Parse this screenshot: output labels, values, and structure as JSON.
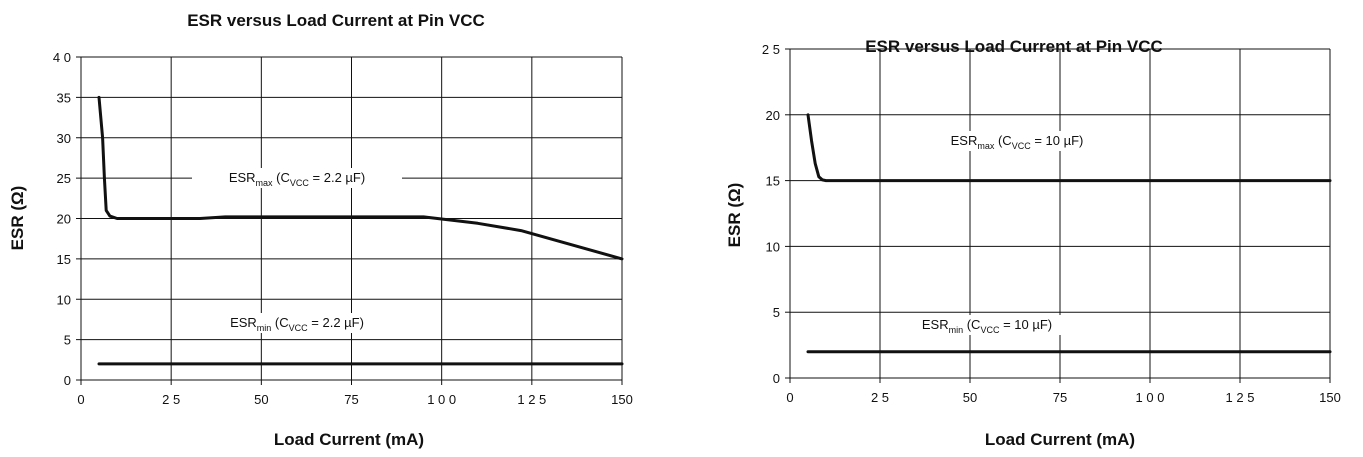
{
  "chart_data": [
    {
      "type": "line",
      "title": "ESR versus Load Current at Pin VCC",
      "xlabel": "Load Current (mA)",
      "ylabel": "ESR (Ω)",
      "xlim": [
        0,
        150
      ],
      "ylim": [
        0,
        40
      ],
      "x_ticks": [
        "0",
        "2 5",
        "50",
        "75",
        "1 0 0",
        "1 2 5",
        "150"
      ],
      "y_ticks": [
        "0",
        "5",
        "10",
        "15",
        "20",
        "25",
        "30",
        "35",
        "4 0"
      ],
      "grid": true,
      "series": [
        {
          "name_main": "ESR",
          "name_sub": "max",
          "name_rest": " (C",
          "name_sub2": "VCC",
          "name_end": " = 2.2 µF)",
          "x": [
            5,
            6,
            6.5,
            7,
            8,
            10,
            20,
            33,
            40,
            60,
            80,
            95,
            110,
            122,
            150
          ],
          "y": [
            35,
            30,
            25,
            21,
            20.3,
            20,
            20,
            20,
            20.2,
            20.2,
            20.2,
            20.2,
            19.4,
            18.5,
            15
          ]
        },
        {
          "name_main": "ESR",
          "name_sub": "min",
          "name_rest": " (C",
          "name_sub2": "VCC",
          "name_end": " = 2.2 µF)",
          "x": [
            5,
            150
          ],
          "y": [
            2,
            2
          ]
        }
      ]
    },
    {
      "type": "line",
      "title": "ESR versus Load Current at Pin VCC",
      "xlabel": "Load Current (mA)",
      "ylabel": "ESR (Ω)",
      "xlim": [
        0,
        150
      ],
      "ylim": [
        0,
        25
      ],
      "x_ticks": [
        "0",
        "2 5",
        "50",
        "75",
        "1 0 0",
        "1 2 5",
        "150"
      ],
      "y_ticks": [
        "0",
        "5",
        "10",
        "15",
        "20",
        "2 5"
      ],
      "grid": true,
      "series": [
        {
          "name_main": "ESR",
          "name_sub": "max",
          "name_rest": " (C",
          "name_sub2": "VCC",
          "name_end": " = 10 µF)",
          "x": [
            5,
            6,
            7,
            8,
            9,
            10,
            20,
            150
          ],
          "y": [
            20,
            18,
            16.3,
            15.3,
            15.05,
            15,
            15,
            15
          ]
        },
        {
          "name_main": "ESR",
          "name_sub": "min",
          "name_rest": " (C",
          "name_sub2": "VCC",
          "name_end": " = 10 µF)",
          "x": [
            5,
            150
          ],
          "y": [
            2,
            2
          ]
        }
      ]
    }
  ]
}
